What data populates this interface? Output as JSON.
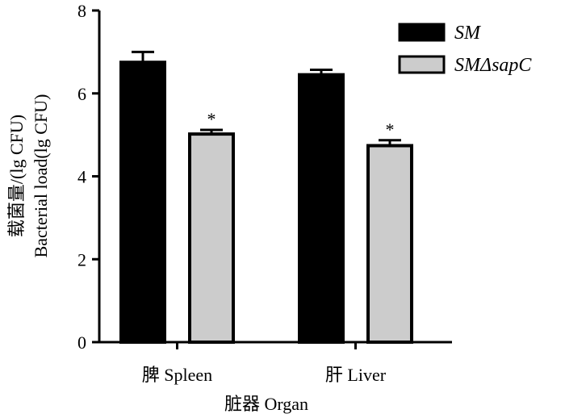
{
  "chart_data": {
    "type": "bar",
    "categories": [
      "脾 Spleen",
      "肝 Liver"
    ],
    "series": [
      {
        "name": "SM",
        "values": [
          6.75,
          6.45
        ],
        "errors": [
          0.25,
          0.12
        ],
        "color": "#000000",
        "significance": [
          "",
          ""
        ]
      },
      {
        "name": "SMΔsapC",
        "values": [
          5.02,
          4.74
        ],
        "errors": [
          0.1,
          0.13
        ],
        "color": "#cccccc",
        "significance": [
          "*",
          "*"
        ]
      }
    ],
    "xlabel": "脏器  Organ",
    "ylabel_line1": "载菌量/(lg CFU)",
    "ylabel_line2": "Bacterial load(lg CFU)",
    "ylim": [
      0,
      8
    ],
    "yticks": [
      0,
      2,
      4,
      6,
      8
    ],
    "legend_position": "top-right",
    "grid": false
  }
}
